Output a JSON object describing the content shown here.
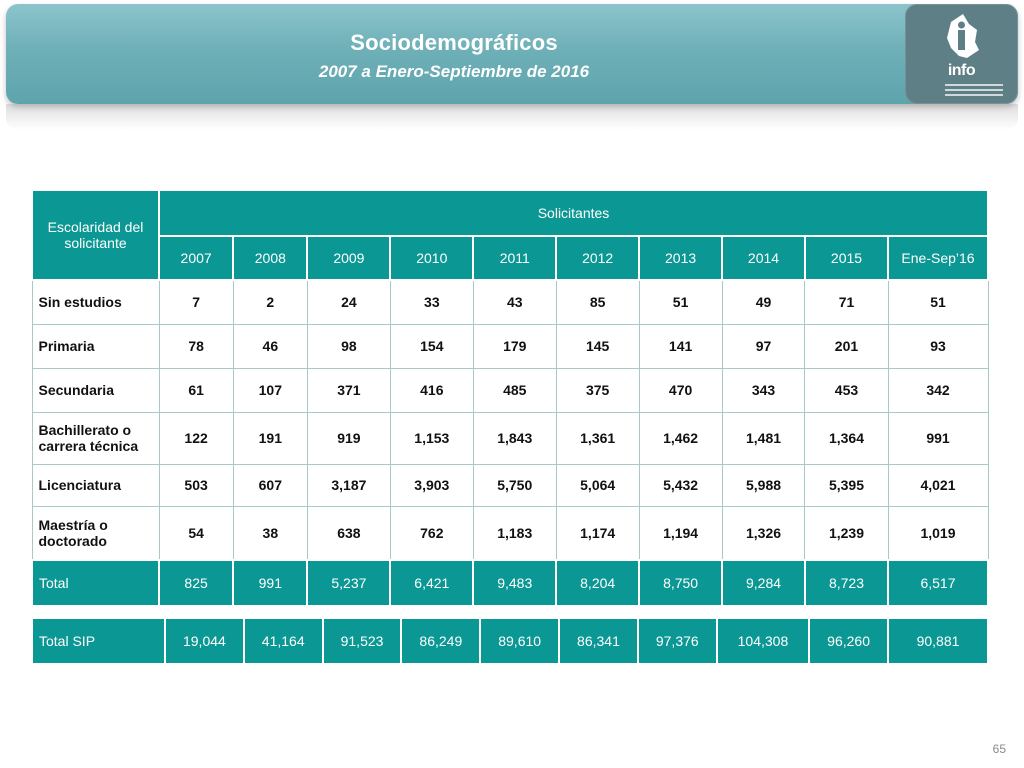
{
  "header": {
    "title": "Sociodemográficos",
    "subtitle": "2007 a Enero-Septiembre de 2016"
  },
  "logo": {
    "text": "info",
    "icon": "info-df-logo"
  },
  "table": {
    "row_header": "Escolaridad del solicitante",
    "group_header": "Solicitantes",
    "years": [
      "2007",
      "2008",
      "2009",
      "2010",
      "2011",
      "2012",
      "2013",
      "2014",
      "2015",
      "Ene-Sep’16"
    ],
    "rows": [
      {
        "label": "Sin estudios",
        "values": [
          "7",
          "2",
          "24",
          "33",
          "43",
          "85",
          "51",
          "49",
          "71",
          "51"
        ]
      },
      {
        "label": "Primaria",
        "values": [
          "78",
          "46",
          "98",
          "154",
          "179",
          "145",
          "141",
          "97",
          "201",
          "93"
        ]
      },
      {
        "label": "Secundaria",
        "values": [
          "61",
          "107",
          "371",
          "416",
          "485",
          "375",
          "470",
          "343",
          "453",
          "342"
        ]
      },
      {
        "label": "Bachillerato o carrera técnica",
        "values": [
          "122",
          "191",
          "919",
          "1,153",
          "1,843",
          "1,361",
          "1,462",
          "1,481",
          "1,364",
          "991"
        ]
      },
      {
        "label": "Licenciatura",
        "values": [
          "503",
          "607",
          "3,187",
          "3,903",
          "5,750",
          "5,064",
          "5,432",
          "5,988",
          "5,395",
          "4,021"
        ]
      },
      {
        "label": "Maestría o doctorado",
        "values": [
          "54",
          "38",
          "638",
          "762",
          "1,183",
          "1,174",
          "1,194",
          "1,326",
          "1,239",
          "1,019"
        ]
      }
    ],
    "total": {
      "label": "Total",
      "values": [
        "825",
        "991",
        "5,237",
        "6,421",
        "9,483",
        "8,204",
        "8,750",
        "9,284",
        "8,723",
        "6,517"
      ]
    },
    "total_sip": {
      "label": "Total SIP",
      "values": [
        "19,044",
        "41,164",
        "91,523",
        "86,249",
        "89,610",
        "86,341",
        "97,376",
        "104,308",
        "96,260",
        "90,881"
      ]
    }
  },
  "page_number": "65",
  "colors": {
    "accent": "#0b9894",
    "banner": "#6fb0b8",
    "logo_bg": "#5e7f86"
  }
}
